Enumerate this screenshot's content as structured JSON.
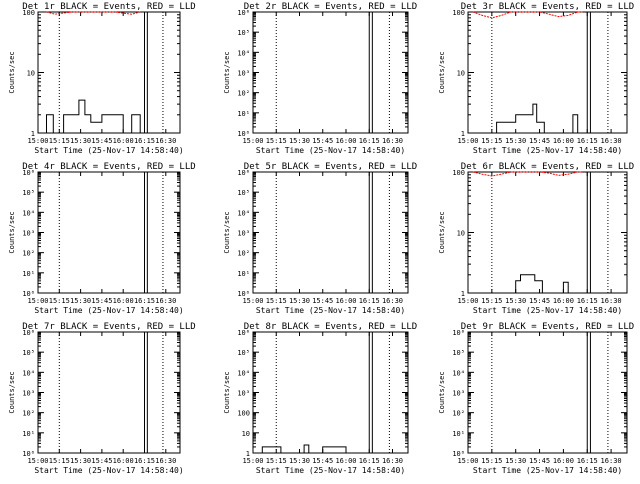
{
  "chart_data": [
    {
      "type": "line",
      "title": "Det 1r BLACK = Events, RED = LLD",
      "xlabel": "Start Time (25-Nov-17 14:58:40)",
      "ylabel": "Counts/sec",
      "xticks": [
        "15:00",
        "15:15",
        "15:30",
        "15:45",
        "16:00",
        "16:15",
        "16:30"
      ],
      "xlim": [
        15.0,
        16.6667
      ],
      "yscale": "log",
      "ylim": [
        1,
        100
      ],
      "yticks": [
        "1",
        "10",
        "100"
      ],
      "dotted_lines": [
        15.25,
        16.4667
      ],
      "solid_lines": [
        16.25,
        16.2833
      ],
      "series": [
        {
          "name": "Events",
          "color": "#000000",
          "x": [
            15.0,
            15.1,
            15.1,
            15.18,
            15.18,
            15.3,
            15.3,
            15.48,
            15.48,
            15.55,
            15.55,
            15.62,
            15.62,
            15.75,
            15.75,
            16.0,
            16.0,
            16.1,
            16.1,
            16.2,
            16.2,
            16.25
          ],
          "y": [
            1,
            1,
            2,
            2,
            1,
            1,
            2,
            2,
            3.5,
            3.5,
            2,
            2,
            1.5,
            1.5,
            2,
            2,
            1,
            1,
            2,
            2,
            1,
            1
          ]
        },
        {
          "name": "LLD",
          "color": "#ff0000",
          "style": "dashed",
          "x": [
            15.1,
            15.2,
            15.3,
            15.4,
            15.5,
            15.6,
            15.7,
            15.8,
            15.9,
            16.0,
            16.1,
            16.2
          ],
          "y": [
            100,
            92,
            96,
            100,
            100,
            100,
            100,
            100,
            100,
            96,
            92,
            100
          ]
        }
      ]
    },
    {
      "type": "line",
      "title": "Det 2r BLACK = Events, RED = LLD",
      "xlabel": "Start Time (25-Nov-17 14:58:40)",
      "ylabel": "Counts/sec",
      "xticks": [
        "15:00",
        "15:15",
        "15:30",
        "15:45",
        "16:00",
        "16:15",
        "16:30"
      ],
      "xlim": [
        15.0,
        16.6667
      ],
      "yscale": "log",
      "ylim": [
        1,
        1000000
      ],
      "yticks": [
        "10⁰",
        "10¹",
        "10²",
        "10³",
        "10⁴",
        "10⁵",
        "10⁶"
      ],
      "dotted_lines": [
        15.25,
        16.4667
      ],
      "solid_lines": [
        16.25,
        16.2833
      ],
      "series": []
    },
    {
      "type": "line",
      "title": "Det 3r BLACK = Events, RED = LLD",
      "xlabel": "Start Time (25-Nov-17 14:58:40)",
      "ylabel": "Counts/sec",
      "xticks": [
        "15:00",
        "15:15",
        "15:30",
        "15:45",
        "16:00",
        "16:15",
        "16:30"
      ],
      "xlim": [
        15.0,
        16.6667
      ],
      "yscale": "log",
      "ylim": [
        1,
        100
      ],
      "yticks": [
        "1",
        "10",
        "100"
      ],
      "dotted_lines": [
        15.25,
        16.4667
      ],
      "solid_lines": [
        16.25,
        16.2833
      ],
      "series": [
        {
          "name": "Events",
          "color": "#000000",
          "x": [
            15.0,
            15.3,
            15.3,
            15.5,
            15.5,
            15.68,
            15.68,
            15.72,
            15.72,
            15.8,
            15.8,
            16.1,
            16.1,
            16.15,
            16.15,
            16.25
          ],
          "y": [
            1,
            1,
            1.5,
            1.5,
            2,
            2,
            3,
            3,
            1.5,
            1.5,
            1,
            1,
            2,
            2,
            1,
            1
          ]
        },
        {
          "name": "LLD",
          "color": "#ff0000",
          "style": "dashed",
          "x": [
            15.05,
            15.15,
            15.25,
            15.35,
            15.45,
            15.55,
            15.65,
            15.75,
            15.85,
            15.95,
            16.05,
            16.15,
            16.2
          ],
          "y": [
            100,
            88,
            80,
            88,
            100,
            100,
            100,
            100,
            92,
            84,
            88,
            100,
            100
          ]
        }
      ]
    },
    {
      "type": "line",
      "title": "Det 4r BLACK = Events, RED = LLD",
      "xlabel": "Start Time (25-Nov-17 14:58:40)",
      "ylabel": "Counts/sec",
      "xticks": [
        "15:00",
        "15:15",
        "15:30",
        "15:45",
        "16:00",
        "16:15",
        "16:30"
      ],
      "xlim": [
        15.0,
        16.6667
      ],
      "yscale": "log",
      "ylim": [
        1,
        1000000
      ],
      "yticks": [
        "10⁰",
        "10¹",
        "10²",
        "10³",
        "10⁴",
        "10⁵",
        "10⁶"
      ],
      "dotted_lines": [
        15.25,
        16.4667
      ],
      "solid_lines": [
        16.25,
        16.2833
      ],
      "series": []
    },
    {
      "type": "line",
      "title": "Det 5r BLACK = Events, RED = LLD",
      "xlabel": "Start Time (25-Nov-17 14:58:40)",
      "ylabel": "Counts/sec",
      "xticks": [
        "15:00",
        "15:15",
        "15:30",
        "15:45",
        "16:00",
        "16:15",
        "16:30"
      ],
      "xlim": [
        15.0,
        16.6667
      ],
      "yscale": "log",
      "ylim": [
        1,
        1000000
      ],
      "yticks": [
        "10⁰",
        "10¹",
        "10²",
        "10³",
        "10⁴",
        "10⁵",
        "10⁶"
      ],
      "dotted_lines": [
        15.25,
        16.4667
      ],
      "solid_lines": [
        16.25,
        16.2833
      ],
      "series": []
    },
    {
      "type": "line",
      "title": "Det 6r BLACK = Events, RED = LLD",
      "xlabel": "Start Time (25-Nov-17 14:58:40)",
      "ylabel": "Counts/sec",
      "xticks": [
        "15:00",
        "15:15",
        "15:30",
        "15:45",
        "16:00",
        "16:15",
        "16:30"
      ],
      "xlim": [
        15.0,
        16.6667
      ],
      "yscale": "log",
      "ylim": [
        1,
        100
      ],
      "yticks": [
        "1",
        "10",
        "100"
      ],
      "dotted_lines": [
        15.25,
        16.4667
      ],
      "solid_lines": [
        16.25,
        16.2833
      ],
      "series": [
        {
          "name": "Events",
          "color": "#000000",
          "x": [
            15.0,
            15.5,
            15.5,
            15.55,
            15.55,
            15.7,
            15.7,
            15.78,
            15.78,
            16.0,
            16.0,
            16.05,
            16.05,
            16.25
          ],
          "y": [
            1,
            1,
            1.6,
            1.6,
            2,
            2,
            1.6,
            1.6,
            1,
            1,
            1.5,
            1.5,
            1,
            1
          ]
        },
        {
          "name": "LLD",
          "color": "#ff0000",
          "style": "dashed",
          "x": [
            15.05,
            15.15,
            15.25,
            15.35,
            15.45,
            15.55,
            15.65,
            15.75,
            15.85,
            15.95,
            16.05,
            16.15,
            16.2
          ],
          "y": [
            100,
            92,
            86,
            92,
            100,
            100,
            100,
            100,
            96,
            88,
            92,
            100,
            100
          ]
        }
      ]
    },
    {
      "type": "line",
      "title": "Det 7r BLACK = Events, RED = LLD",
      "xlabel": "Start Time (25-Nov-17 14:58:40)",
      "ylabel": "Counts/sec",
      "xticks": [
        "15:00",
        "15:15",
        "15:30",
        "15:45",
        "16:00",
        "16:15",
        "16:30"
      ],
      "xlim": [
        15.0,
        16.6667
      ],
      "yscale": "log",
      "ylim": [
        1,
        1000000
      ],
      "yticks": [
        "10⁰",
        "10¹",
        "10²",
        "10³",
        "10⁴",
        "10⁵",
        "10⁶"
      ],
      "dotted_lines": [
        15.25,
        16.4667
      ],
      "solid_lines": [
        16.25,
        16.2833
      ],
      "series": []
    },
    {
      "type": "line",
      "title": "Det 8r BLACK = Events, RED = LLD",
      "xlabel": "Start Time (25-Nov-17 14:58:40)",
      "ylabel": "Counts/sec",
      "xticks": [
        "15:00",
        "15:15",
        "15:30",
        "15:45",
        "16:00",
        "16:15",
        "16:30"
      ],
      "xlim": [
        15.0,
        16.6667
      ],
      "yscale": "log",
      "ylim": [
        1,
        1000000
      ],
      "yticks": [
        "1",
        "10",
        "100",
        "10³",
        "10⁴",
        "10⁵",
        "10⁶"
      ],
      "dotted_lines": [
        15.25,
        16.4667
      ],
      "solid_lines": [
        16.25,
        16.2833
      ],
      "series": [
        {
          "name": "Events",
          "color": "#000000",
          "x": [
            15.0,
            15.1,
            15.1,
            15.3,
            15.3,
            15.55,
            15.55,
            15.6,
            15.6,
            15.75,
            15.75,
            16.0,
            16.0,
            16.25
          ],
          "y": [
            1,
            1,
            2,
            2,
            1,
            1,
            2.5,
            2.5,
            1,
            1,
            2,
            2,
            1,
            1
          ]
        }
      ]
    },
    {
      "type": "line",
      "title": "Det 9r BLACK = Events, RED = LLD",
      "xlabel": "Start Time (25-Nov-17 14:58:40)",
      "ylabel": "Counts/sec",
      "xticks": [
        "15:00",
        "15:15",
        "15:30",
        "15:45",
        "16:00",
        "16:15",
        "16:30"
      ],
      "xlim": [
        15.0,
        16.6667
      ],
      "yscale": "log",
      "ylim": [
        1,
        1000000
      ],
      "yticks": [
        "10⁰",
        "10¹",
        "10²",
        "10³",
        "10⁴",
        "10⁵",
        "10⁶"
      ],
      "dotted_lines": [
        15.25,
        16.4667
      ],
      "solid_lines": [
        16.25,
        16.2833
      ],
      "series": []
    }
  ]
}
